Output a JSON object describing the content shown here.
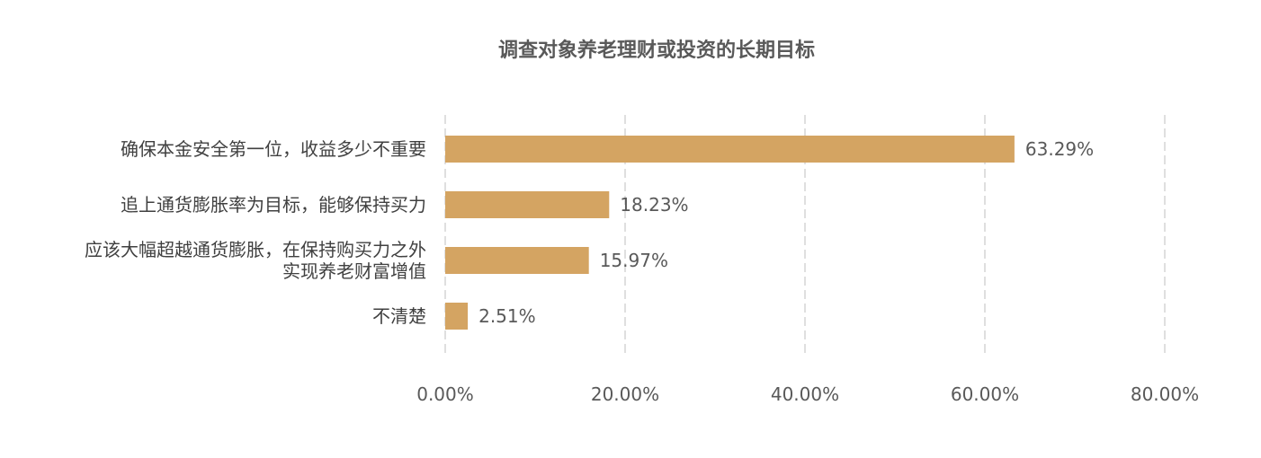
{
  "chart_data": {
    "type": "bar",
    "orientation": "horizontal",
    "title": "调查对象养老理财或投资的长期目标",
    "categories": [
      [
        "确保本金安全第一位，收益多少不重要"
      ],
      [
        "追上通货膨胀率为目标，能够保持买力"
      ],
      [
        "应该大幅超越通货膨胀，在保持购买力之外",
        "实现养老财富增值"
      ],
      [
        "不清楚"
      ]
    ],
    "values": [
      63.29,
      18.23,
      15.97,
      2.51
    ],
    "data_labels": [
      "63.29%",
      "18.23%",
      "15.97%",
      "2.51%"
    ],
    "xlim": [
      0,
      80
    ],
    "xticks": [
      0,
      20,
      40,
      60,
      80
    ],
    "xtick_labels": [
      "0.00%",
      "20.00%",
      "40.00%",
      "60.00%",
      "80.00%"
    ],
    "grid": "vertical-dashed",
    "legend": "none",
    "colors": {
      "bar": "#D4A462",
      "grid": "#BFBFBF",
      "title": "#595959",
      "label": "#404040"
    }
  }
}
